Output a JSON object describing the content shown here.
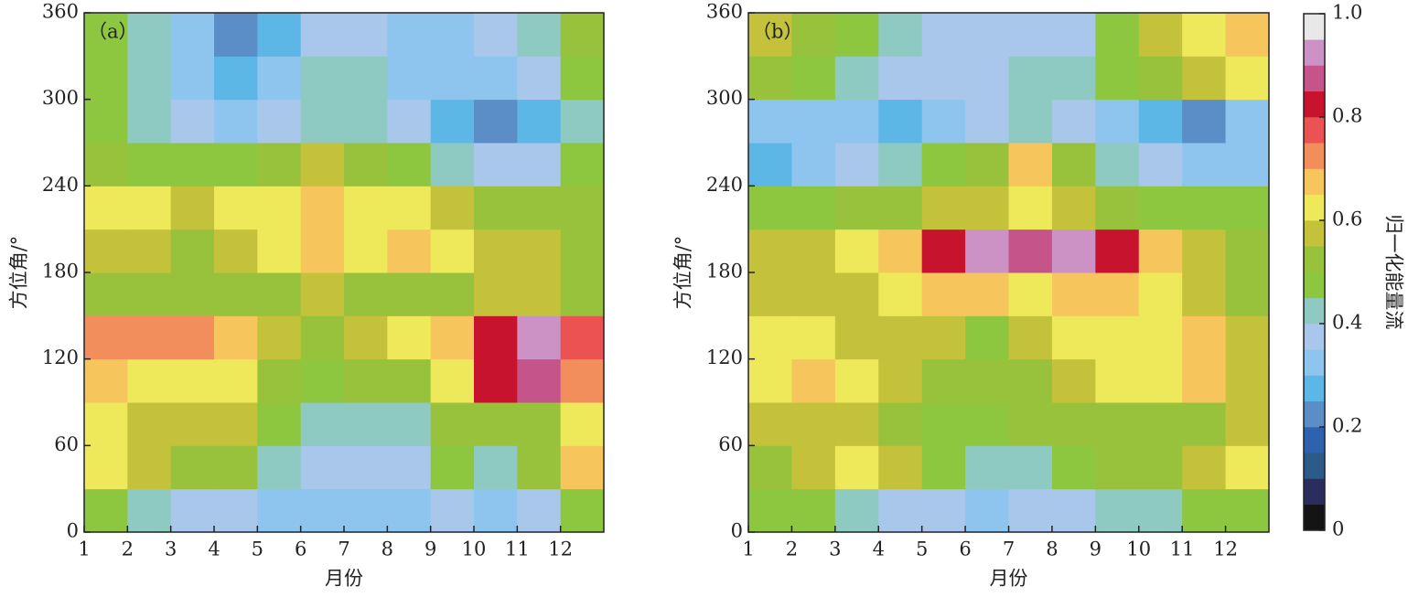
{
  "chart_data": [
    {
      "type": "heatmap",
      "title": "（a）",
      "xlabel": "月份",
      "ylabel": "方位角/°",
      "xlim": [
        1,
        13
      ],
      "xticks": [
        1,
        2,
        3,
        4,
        5,
        6,
        7,
        8,
        9,
        10,
        11,
        12
      ],
      "ylim": [
        0,
        360
      ],
      "yticks": [
        0,
        60,
        120,
        180,
        240,
        300,
        360
      ],
      "x_edges": [
        1,
        2,
        3,
        4,
        5,
        6,
        7,
        8,
        9,
        10,
        11,
        12,
        13
      ],
      "y_edges": [
        0,
        30,
        60,
        90,
        120,
        150,
        180,
        210,
        240,
        270,
        300,
        330,
        360
      ],
      "z": [
        [
          0.45,
          0.4,
          0.35,
          0.35,
          0.3,
          0.3,
          0.3,
          0.3,
          0.35,
          0.3,
          0.35,
          0.45
        ],
        [
          0.6,
          0.55,
          0.5,
          0.5,
          0.4,
          0.35,
          0.35,
          0.35,
          0.45,
          0.4,
          0.5,
          0.65
        ],
        [
          0.6,
          0.55,
          0.55,
          0.55,
          0.45,
          0.4,
          0.4,
          0.4,
          0.5,
          0.5,
          0.5,
          0.6
        ],
        [
          0.65,
          0.62,
          0.62,
          0.6,
          0.5,
          0.45,
          0.5,
          0.5,
          0.6,
          0.8,
          0.85,
          0.7
        ],
        [
          0.72,
          0.7,
          0.72,
          0.68,
          0.55,
          0.5,
          0.55,
          0.6,
          0.65,
          0.82,
          0.92,
          0.75
        ],
        [
          0.5,
          0.5,
          0.5,
          0.5,
          0.52,
          0.55,
          0.5,
          0.5,
          0.5,
          0.55,
          0.55,
          0.5
        ],
        [
          0.55,
          0.55,
          0.5,
          0.55,
          0.6,
          0.68,
          0.6,
          0.68,
          0.6,
          0.55,
          0.55,
          0.5
        ],
        [
          0.62,
          0.6,
          0.58,
          0.6,
          0.62,
          0.65,
          0.62,
          0.6,
          0.55,
          0.5,
          0.5,
          0.5
        ],
        [
          0.5,
          0.45,
          0.45,
          0.45,
          0.5,
          0.55,
          0.5,
          0.45,
          0.4,
          0.35,
          0.35,
          0.45
        ],
        [
          0.45,
          0.4,
          0.35,
          0.3,
          0.35,
          0.4,
          0.4,
          0.35,
          0.25,
          0.2,
          0.25,
          0.4
        ],
        [
          0.45,
          0.4,
          0.3,
          0.25,
          0.3,
          0.4,
          0.4,
          0.3,
          0.3,
          0.3,
          0.35,
          0.45
        ],
        [
          0.45,
          0.4,
          0.3,
          0.2,
          0.25,
          0.35,
          0.35,
          0.3,
          0.3,
          0.35,
          0.4,
          0.5
        ]
      ]
    },
    {
      "type": "heatmap",
      "title": "（b）",
      "xlabel": "月份",
      "ylabel": "方位角/°",
      "xlim": [
        1,
        13
      ],
      "xticks": [
        1,
        2,
        3,
        4,
        5,
        6,
        7,
        8,
        9,
        10,
        11,
        12
      ],
      "ylim": [
        0,
        360
      ],
      "yticks": [
        0,
        60,
        120,
        180,
        240,
        300,
        360
      ],
      "x_edges": [
        1,
        2,
        3,
        4,
        5,
        6,
        7,
        8,
        9,
        10,
        11,
        12,
        13
      ],
      "y_edges": [
        0,
        30,
        60,
        90,
        120,
        150,
        180,
        210,
        240,
        270,
        300,
        330,
        360
      ],
      "z": [
        [
          0.45,
          0.45,
          0.4,
          0.35,
          0.35,
          0.3,
          0.35,
          0.35,
          0.4,
          0.4,
          0.45,
          0.45
        ],
        [
          0.5,
          0.55,
          0.62,
          0.55,
          0.45,
          0.4,
          0.4,
          0.45,
          0.5,
          0.5,
          0.55,
          0.62
        ],
        [
          0.55,
          0.55,
          0.55,
          0.5,
          0.45,
          0.45,
          0.5,
          0.5,
          0.5,
          0.5,
          0.5,
          0.55
        ],
        [
          0.62,
          0.65,
          0.62,
          0.55,
          0.5,
          0.5,
          0.5,
          0.55,
          0.6,
          0.62,
          0.65,
          0.55
        ],
        [
          0.62,
          0.6,
          0.58,
          0.55,
          0.55,
          0.45,
          0.55,
          0.6,
          0.6,
          0.62,
          0.68,
          0.55
        ],
        [
          0.55,
          0.55,
          0.55,
          0.6,
          0.65,
          0.65,
          0.62,
          0.65,
          0.65,
          0.6,
          0.55,
          0.5
        ],
        [
          0.55,
          0.58,
          0.6,
          0.68,
          0.82,
          0.92,
          0.85,
          0.9,
          0.8,
          0.65,
          0.58,
          0.5
        ],
        [
          0.45,
          0.45,
          0.5,
          0.5,
          0.55,
          0.58,
          0.62,
          0.58,
          0.5,
          0.45,
          0.45,
          0.45
        ],
        [
          0.25,
          0.3,
          0.35,
          0.4,
          0.45,
          0.5,
          0.65,
          0.5,
          0.4,
          0.35,
          0.3,
          0.3
        ],
        [
          0.3,
          0.3,
          0.3,
          0.25,
          0.3,
          0.35,
          0.4,
          0.35,
          0.3,
          0.25,
          0.2,
          0.3
        ],
        [
          0.5,
          0.45,
          0.4,
          0.35,
          0.35,
          0.35,
          0.4,
          0.4,
          0.45,
          0.5,
          0.55,
          0.6
        ],
        [
          0.55,
          0.5,
          0.45,
          0.4,
          0.35,
          0.35,
          0.35,
          0.35,
          0.45,
          0.55,
          0.6,
          0.65
        ]
      ]
    },
    {
      "type": "colorbar",
      "label": "归一化能量流",
      "ylim": [
        0,
        1
      ],
      "yticks": [
        0,
        0.2,
        0.4,
        0.6,
        0.8,
        {
          "value": 1,
          "label": "1.0"
        }
      ],
      "levels": [
        0,
        0.05,
        0.1,
        0.15,
        0.2,
        0.25,
        0.3,
        0.35,
        0.4,
        0.45,
        0.5,
        0.55,
        0.6,
        0.65,
        0.7,
        0.75,
        0.8,
        0.85,
        0.9,
        0.95,
        1
      ],
      "colors": [
        "#141414",
        "#2b2d5c",
        "#2b5b86",
        "#2f62ad",
        "#5b8ec6",
        "#5cb7e6",
        "#8ec5ee",
        "#a9c7ea",
        "#8ec9c2",
        "#8dc73f",
        "#99c23c",
        "#c4c13a",
        "#eee95b",
        "#f6c65c",
        "#f28e5b",
        "#ea5352",
        "#c8132f",
        "#c5548a",
        "#cc92c6",
        "#e8e8e8"
      ]
    }
  ]
}
